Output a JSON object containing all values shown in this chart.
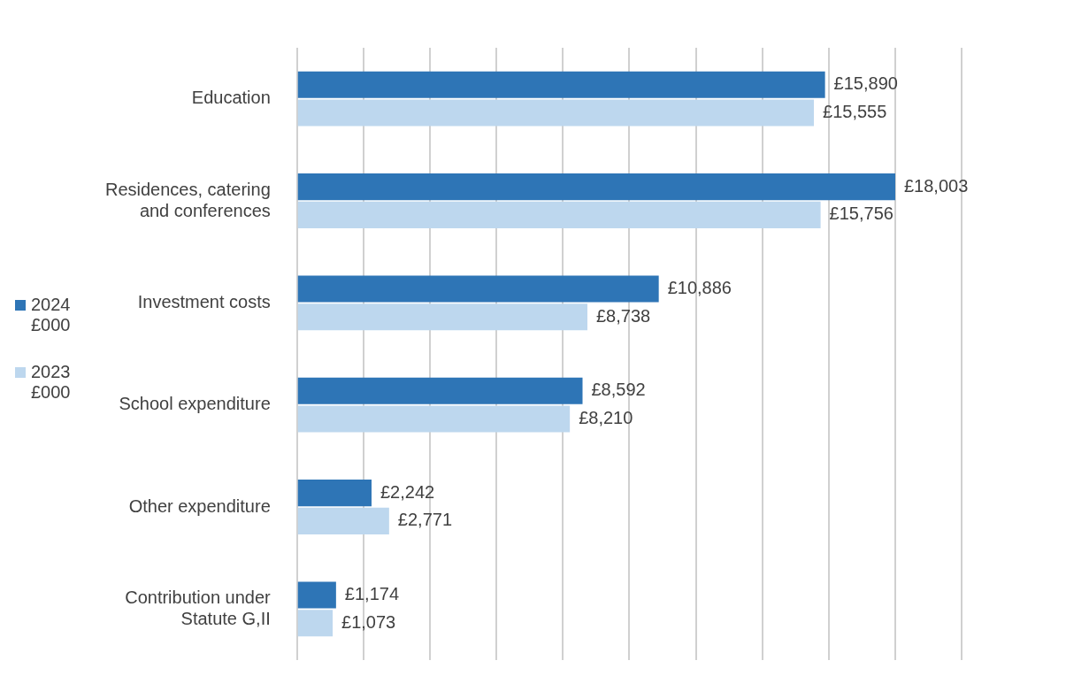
{
  "chart_data": {
    "type": "bar",
    "orientation": "horizontal",
    "categories": [
      "Education",
      "Residences, catering and conferences",
      "Investment costs",
      "School expenditure",
      "Other expenditure",
      "Contribution under Statute G,II"
    ],
    "series": [
      {
        "name": "2024 £000",
        "color": "#2e75b6",
        "values": [
          15890,
          18003,
          10886,
          8592,
          2242,
          1174
        ],
        "value_labels": [
          "£15,890",
          "£18,003",
          "£10,886",
          "£8,592",
          "£2,242",
          "£1,174"
        ]
      },
      {
        "name": "2023 £000",
        "color": "#bdd7ee",
        "values": [
          15555,
          15756,
          8738,
          8210,
          2771,
          1073
        ],
        "value_labels": [
          "£15,555",
          "£15,756",
          "£8,738",
          "£8,210",
          "£2,771",
          "£1,073"
        ]
      }
    ],
    "xlim": [
      0,
      20000
    ],
    "xticks": [
      {
        "value": 0,
        "label": null
      },
      {
        "value": 2000,
        "label": null
      },
      {
        "value": 4000,
        "label": null
      },
      {
        "value": 6000,
        "label": null
      },
      {
        "value": 8000,
        "label": null
      },
      {
        "value": 10000,
        "label": null
      },
      {
        "value": 12000,
        "label": null
      },
      {
        "value": 14000,
        "label": null
      },
      {
        "value": 16000,
        "label": null
      },
      {
        "value": 18000,
        "label": null
      },
      {
        "value": 20000,
        "label": null
      }
    ],
    "tick_labels": "y",
    "grid": "x",
    "legend": "left"
  }
}
